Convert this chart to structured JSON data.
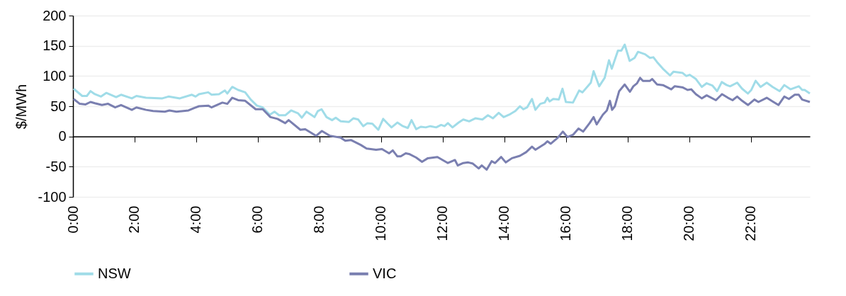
{
  "chart_data": {
    "type": "line",
    "ylabel": "$/MWh",
    "xlim": [
      0,
      23.92
    ],
    "ylim": [
      -100,
      200
    ],
    "yticks": [
      -100,
      -50,
      0,
      50,
      100,
      150,
      200
    ],
    "xticks": [
      {
        "value": 0,
        "label": "0:00"
      },
      {
        "value": 2,
        "label": "2:00"
      },
      {
        "value": 4,
        "label": "4:00"
      },
      {
        "value": 6,
        "label": "6:00"
      },
      {
        "value": 8,
        "label": "8:00"
      },
      {
        "value": 10,
        "label": "10:00"
      },
      {
        "value": 12,
        "label": "12:00"
      },
      {
        "value": 14,
        "label": "14:00"
      },
      {
        "value": 16,
        "label": "16:00"
      },
      {
        "value": 18,
        "label": "18:00"
      },
      {
        "value": 20,
        "label": "20:00"
      },
      {
        "value": 22,
        "label": "22:00"
      }
    ],
    "grid": "y",
    "legend": "bottom",
    "series": [
      {
        "name": "NSW",
        "color": "#a0dce8",
        "x": [
          0.02,
          0.3,
          0.45,
          0.57,
          0.71,
          0.91,
          1.08,
          1.4,
          1.56,
          1.91,
          2.06,
          2.37,
          2.9,
          3.1,
          3.47,
          3.86,
          3.98,
          4.09,
          4.39,
          4.5,
          4.74,
          4.93,
          5.01,
          5.17,
          5.36,
          5.59,
          5.77,
          5.97,
          6.16,
          6.39,
          6.54,
          6.69,
          6.89,
          7.08,
          7.31,
          7.43,
          7.58,
          7.84,
          7.95,
          8.07,
          8.23,
          8.41,
          8.53,
          8.69,
          8.96,
          9.1,
          9.26,
          9.42,
          9.56,
          9.72,
          9.91,
          10.07,
          10.22,
          10.34,
          10.53,
          10.71,
          10.87,
          10.99,
          11.14,
          11.29,
          11.45,
          11.6,
          11.79,
          11.95,
          12.06,
          12.17,
          12.32,
          12.52,
          12.67,
          12.86,
          13.06,
          13.29,
          13.47,
          13.63,
          13.82,
          13.98,
          14.16,
          14.36,
          14.51,
          14.62,
          14.74,
          14.9,
          15.01,
          15.17,
          15.31,
          15.4,
          15.47,
          15.59,
          15.77,
          15.89,
          16.0,
          16.23,
          16.43,
          16.54,
          16.81,
          16.9,
          17.08,
          17.26,
          17.4,
          17.49,
          17.69,
          17.8,
          17.91,
          18.07,
          18.23,
          18.34,
          18.57,
          18.73,
          18.84,
          18.96,
          19.15,
          19.38,
          19.49,
          19.79,
          19.91,
          20.02,
          20.22,
          20.41,
          20.57,
          20.76,
          20.91,
          21.06,
          21.22,
          21.33,
          21.56,
          21.72,
          21.91,
          22.02,
          22.16,
          22.32,
          22.52,
          22.71,
          22.94,
          23.09,
          23.29,
          23.56,
          23.67,
          23.75,
          23.92
        ],
        "values": [
          79,
          67,
          67,
          75,
          70,
          66,
          72,
          65,
          69,
          63,
          67,
          64,
          63,
          66,
          63,
          69,
          66,
          70,
          73,
          69,
          70,
          76,
          71,
          82,
          77,
          73,
          61,
          51,
          48,
          36,
          41,
          35,
          35,
          43,
          38,
          31,
          41,
          32,
          42,
          45,
          32,
          27,
          31,
          25,
          24,
          30,
          28,
          17,
          22,
          21,
          11,
          29,
          21,
          15,
          23,
          17,
          14,
          27,
          12,
          16,
          15,
          17,
          15,
          19,
          17,
          22,
          15,
          23,
          28,
          25,
          30,
          28,
          35,
          30,
          39,
          32,
          36,
          42,
          50,
          45,
          48,
          62,
          44,
          54,
          56,
          64,
          58,
          62,
          61,
          79,
          57,
          56,
          76,
          73,
          89,
          108,
          83,
          97,
          126,
          112,
          142,
          142,
          152,
          125,
          130,
          140,
          136,
          130,
          131,
          123,
          112,
          101,
          107,
          105,
          100,
          102,
          95,
          82,
          88,
          84,
          75,
          90,
          85,
          83,
          89,
          79,
          71,
          77,
          92,
          82,
          89,
          82,
          75,
          85,
          78,
          83,
          77,
          77,
          71
        ]
      },
      {
        "name": "VIC",
        "color": "#7a7fb0",
        "x": [
          0.02,
          0.22,
          0.41,
          0.57,
          0.71,
          0.94,
          1.14,
          1.37,
          1.56,
          1.91,
          2.06,
          2.37,
          2.6,
          2.98,
          3.13,
          3.36,
          3.75,
          3.93,
          4.09,
          4.39,
          4.5,
          4.85,
          5.01,
          5.17,
          5.36,
          5.59,
          5.93,
          6.16,
          6.41,
          6.64,
          6.89,
          7.0,
          7.38,
          7.54,
          7.89,
          8.08,
          8.34,
          8.69,
          8.84,
          9.03,
          9.34,
          9.53,
          9.84,
          10.03,
          10.26,
          10.38,
          10.53,
          10.64,
          10.8,
          10.91,
          11.14,
          11.33,
          11.52,
          11.83,
          12.17,
          12.4,
          12.49,
          12.67,
          12.83,
          12.98,
          13.17,
          13.27,
          13.43,
          13.59,
          13.7,
          13.9,
          14.05,
          14.25,
          14.51,
          14.71,
          14.9,
          15.01,
          15.2,
          15.32,
          15.4,
          15.51,
          15.74,
          15.9,
          16.05,
          16.24,
          16.41,
          16.56,
          16.77,
          16.9,
          17.0,
          17.2,
          17.33,
          17.43,
          17.5,
          17.59,
          17.73,
          17.91,
          18.08,
          18.19,
          18.31,
          18.41,
          18.5,
          18.73,
          18.8,
          18.96,
          19.15,
          19.42,
          19.53,
          19.8,
          19.95,
          20.07,
          20.22,
          20.41,
          20.57,
          20.87,
          21.07,
          21.26,
          21.41,
          21.56,
          21.72,
          21.91,
          22.12,
          22.25,
          22.52,
          22.71,
          22.9,
          23.09,
          23.24,
          23.43,
          23.56,
          23.67,
          23.92
        ],
        "values": [
          62,
          54,
          53,
          57,
          55,
          52,
          54,
          48,
          52,
          44,
          48,
          44,
          42,
          41,
          43,
          41,
          43,
          47,
          50,
          51,
          48,
          56,
          54,
          64,
          60,
          59,
          45,
          45,
          32,
          29,
          22,
          27,
          11,
          12,
          1,
          9,
          1,
          -2,
          -7,
          -6,
          -14,
          -20,
          -22,
          -21,
          -28,
          -23,
          -33,
          -33,
          -28,
          -29,
          -35,
          -42,
          -36,
          -34,
          -44,
          -39,
          -48,
          -44,
          -43,
          -45,
          -53,
          -48,
          -55,
          -41,
          -44,
          -34,
          -43,
          -36,
          -32,
          -26,
          -17,
          -22,
          -16,
          -12,
          -8,
          -12,
          -2,
          8,
          -1,
          3,
          13,
          8,
          22,
          32,
          20,
          36,
          43,
          59,
          44,
          50,
          75,
          86,
          74,
          83,
          88,
          97,
          92,
          92,
          95,
          86,
          85,
          78,
          83,
          81,
          77,
          78,
          70,
          63,
          68,
          60,
          70,
          64,
          60,
          66,
          59,
          52,
          61,
          57,
          64,
          58,
          52,
          66,
          62,
          69,
          69,
          61,
          57
        ]
      }
    ]
  }
}
